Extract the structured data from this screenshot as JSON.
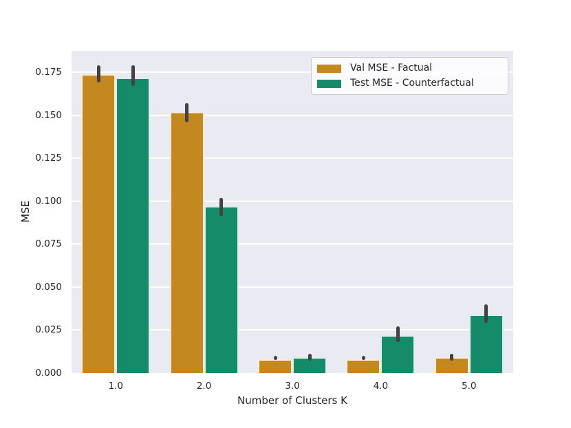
{
  "chart_data": {
    "type": "bar",
    "title": "",
    "xlabel": "Number of Clusters K",
    "ylabel": "MSE",
    "categories": [
      "1.0",
      "2.0",
      "3.0",
      "4.0",
      "5.0"
    ],
    "series": [
      {
        "name": "Val MSE - Factual",
        "color": "#c38820",
        "values": [
          0.174,
          0.152,
          0.008,
          0.008,
          0.009
        ],
        "errors": [
          [
            0.169,
            0.179
          ],
          [
            0.146,
            0.157
          ],
          [
            0.0075,
            0.01
          ],
          [
            0.0075,
            0.01
          ],
          [
            0.007,
            0.011
          ]
        ]
      },
      {
        "name": "Test MSE - Counterfactual",
        "color": "#158b6a",
        "values": [
          0.172,
          0.097,
          0.009,
          0.022,
          0.034
        ],
        "errors": [
          [
            0.167,
            0.179
          ],
          [
            0.091,
            0.102
          ],
          [
            0.007,
            0.011
          ],
          [
            0.018,
            0.027
          ],
          [
            0.029,
            0.04
          ]
        ]
      }
    ],
    "yticks": [
      0.0,
      0.025,
      0.05,
      0.075,
      0.1,
      0.125,
      0.15,
      0.175
    ],
    "ytick_labels": [
      "0.000",
      "0.025",
      "0.050",
      "0.075",
      "0.100",
      "0.125",
      "0.150",
      "0.175"
    ],
    "ylim": [
      0,
      0.1874
    ],
    "grid": true,
    "grid_color": "#ffffff",
    "plot_bg": "#eaeaf2",
    "error_bar_color": "#424242",
    "legend_position": "upper right"
  }
}
